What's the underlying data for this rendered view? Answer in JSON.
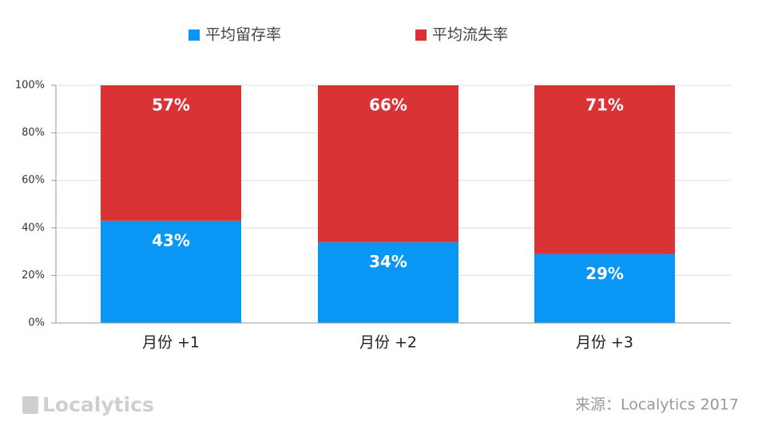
{
  "chart_data": {
    "type": "stacked-bar",
    "categories": [
      "月份 +1",
      "月份 +2",
      "月份 +3"
    ],
    "series": [
      {
        "name": "平均留存率",
        "color": "#0a96f5",
        "values": [
          43,
          34,
          29
        ],
        "value_labels": [
          "43%",
          "34%",
          "29%"
        ]
      },
      {
        "name": "平均流失率",
        "color": "#d93336",
        "values": [
          57,
          66,
          71
        ],
        "value_labels": [
          "57%",
          "66%",
          "71%"
        ]
      }
    ],
    "ylim": [
      0,
      100
    ],
    "yticks": [
      {
        "value": 0,
        "label": "0%"
      },
      {
        "value": 20,
        "label": "20%"
      },
      {
        "value": 40,
        "label": "40%"
      },
      {
        "value": 60,
        "label": "60%"
      },
      {
        "value": 80,
        "label": "80%"
      },
      {
        "value": 100,
        "label": "100%"
      }
    ],
    "grid": true,
    "legend": "top",
    "logo": "Localytics",
    "source": "来源：Localytics 2017"
  }
}
